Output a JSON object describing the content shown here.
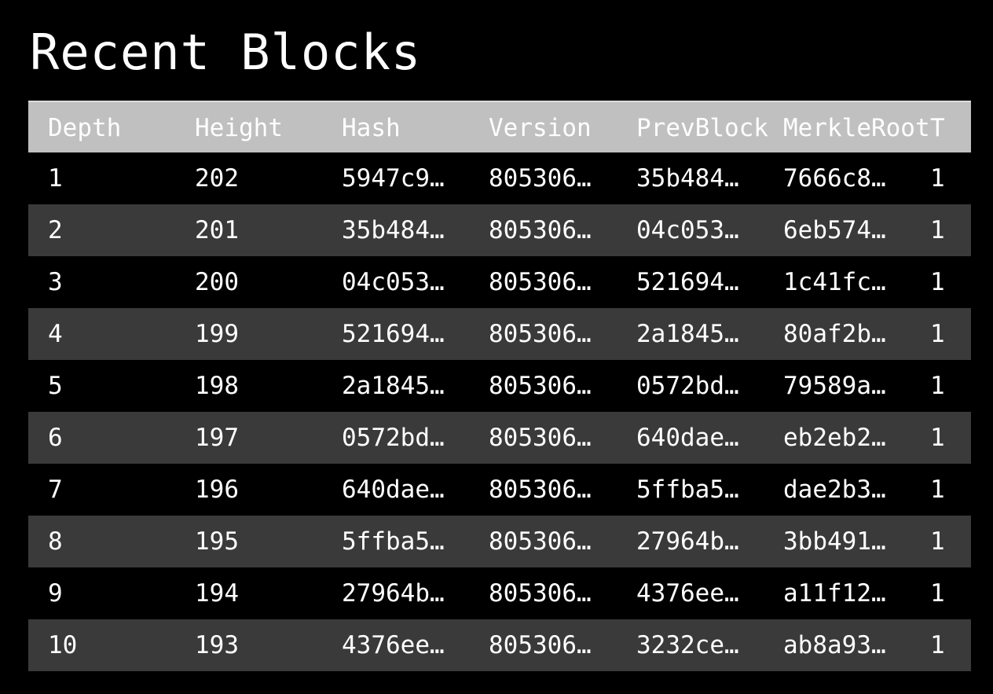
{
  "page": {
    "title": "Recent Blocks"
  },
  "table": {
    "columns": [
      "Depth",
      "Height",
      "Hash",
      "Version",
      "PrevBlock",
      "MerkleRoot",
      "T"
    ],
    "rows": [
      [
        "1",
        "202",
        "5947c9…",
        "805306…",
        "35b484…",
        "7666c8…",
        "1"
      ],
      [
        "2",
        "201",
        "35b484…",
        "805306…",
        "04c053…",
        "6eb574…",
        "1"
      ],
      [
        "3",
        "200",
        "04c053…",
        "805306…",
        "521694…",
        "1c41fc…",
        "1"
      ],
      [
        "4",
        "199",
        "521694…",
        "805306…",
        "2a1845…",
        "80af2b…",
        "1"
      ],
      [
        "5",
        "198",
        "2a1845…",
        "805306…",
        "0572bd…",
        "79589a…",
        "1"
      ],
      [
        "6",
        "197",
        "0572bd…",
        "805306…",
        "640dae…",
        "eb2eb2…",
        "1"
      ],
      [
        "7",
        "196",
        "640dae…",
        "805306…",
        "5ffba5…",
        "dae2b3…",
        "1"
      ],
      [
        "8",
        "195",
        "5ffba5…",
        "805306…",
        "27964b…",
        "3bb491…",
        "1"
      ],
      [
        "9",
        "194",
        "27964b…",
        "805306…",
        "4376ee…",
        "a11f12…",
        "1"
      ],
      [
        "10",
        "193",
        "4376ee…",
        "805306…",
        "3232ce…",
        "ab8a93…",
        "1"
      ]
    ]
  },
  "colors": {
    "background": "#000000",
    "header_background": "#c0c0c0",
    "row_odd": "#000000",
    "row_even": "#3a3a3a",
    "text": "#ffffff"
  }
}
